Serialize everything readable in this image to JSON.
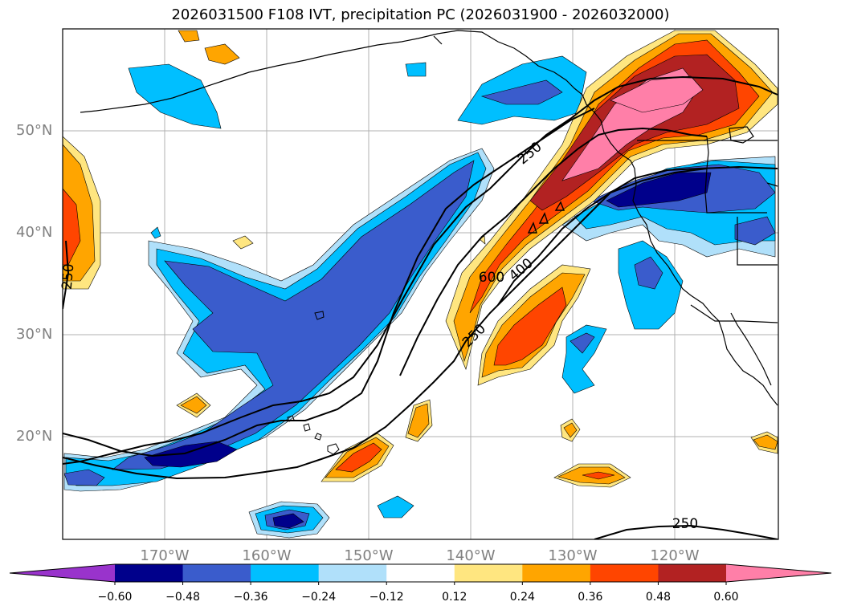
{
  "title": "2026031500 F108 IVT, precipitation PC (2026031900 - 2026032000)",
  "lat_labels": [
    "50°N",
    "40°N",
    "30°N",
    "20°N"
  ],
  "lon_labels": [
    "170°W",
    "160°W",
    "150°W",
    "140°W",
    "130°W",
    "120°W"
  ],
  "contour_labels": [
    "250",
    "250",
    "600",
    "400",
    "250",
    "250"
  ],
  "colorbar": {
    "tick_labels": [
      "−0.60",
      "−0.48",
      "−0.36",
      "−0.24",
      "−0.12",
      "0.12",
      "0.24",
      "0.36",
      "0.48",
      "0.60"
    ],
    "colors": [
      "#9933cc",
      "#00008b",
      "#3a5ccc",
      "#00bfff",
      "#b0e0fa",
      "#ffffff",
      "#ffe680",
      "#ffa500",
      "#ff4500",
      "#b22222",
      "#ff7fa8"
    ]
  }
}
